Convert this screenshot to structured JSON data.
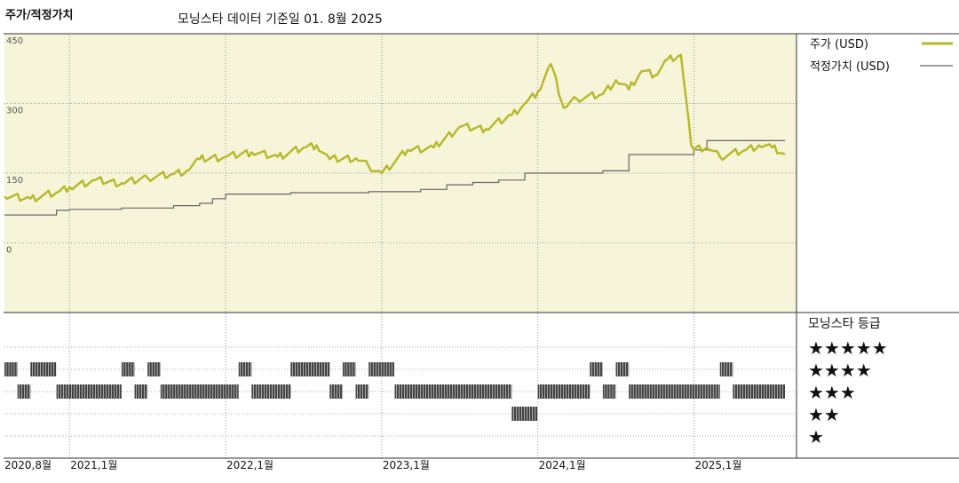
{
  "header": {
    "title": "주가/적정가치",
    "subtitle": "모닝스타 데이터 기준일 01. 8월 2025"
  },
  "legend": {
    "price_label": "주가 (USD)",
    "fair_label": "적정가치 (USD)",
    "price_color": "#b5b828",
    "fair_color": "#666666"
  },
  "rating_panel": {
    "title": "모닝스타 등급",
    "levels": [
      "★★★★★",
      "★★★★",
      "★★★",
      "★★",
      "★"
    ]
  },
  "chart_data": {
    "type": "line",
    "x_axis": {
      "start": "2020-08",
      "end": "2025-08",
      "ticks": [
        {
          "date": "2020-08",
          "label": "2020,8월"
        },
        {
          "date": "2021-01",
          "label": "2021,1월"
        },
        {
          "date": "2022-01",
          "label": "2022,1월"
        },
        {
          "date": "2023-01",
          "label": "2023,1월"
        },
        {
          "date": "2024-01",
          "label": "2024,1월"
        },
        {
          "date": "2025-01",
          "label": "2025,1월"
        }
      ]
    },
    "y_axis": {
      "range": [
        -150,
        450
      ],
      "ticks": [
        {
          "value": 450,
          "label": "450"
        },
        {
          "value": 300,
          "label": "300"
        },
        {
          "value": 150,
          "label": "150"
        },
        {
          "value": 0,
          "label": "0"
        }
      ],
      "grid": true
    },
    "legend_position": "right",
    "series": [
      {
        "name": "주가 (USD)",
        "points": [
          [
            "2020-08",
            100
          ],
          [
            "2020-10",
            95
          ],
          [
            "2020-12",
            108
          ],
          [
            "2021-01",
            120
          ],
          [
            "2021-03",
            135
          ],
          [
            "2021-05",
            128
          ],
          [
            "2021-07",
            140
          ],
          [
            "2021-09",
            148
          ],
          [
            "2021-10",
            155
          ],
          [
            "2021-11",
            180
          ],
          [
            "2022-01",
            185
          ],
          [
            "2022-03",
            195
          ],
          [
            "2022-05",
            185
          ],
          [
            "2022-07",
            205
          ],
          [
            "2022-08",
            210
          ],
          [
            "2022-09",
            180
          ],
          [
            "2022-11",
            182
          ],
          [
            "2022-12",
            165
          ],
          [
            "2023-01",
            150
          ],
          [
            "2023-03",
            200
          ],
          [
            "2023-05",
            205
          ],
          [
            "2023-07",
            250
          ],
          [
            "2023-09",
            245
          ],
          [
            "2023-11",
            275
          ],
          [
            "2023-12",
            300
          ],
          [
            "2024-01",
            325
          ],
          [
            "2024-02",
            385
          ],
          [
            "2024-03",
            290
          ],
          [
            "2024-04",
            310
          ],
          [
            "2024-06",
            320
          ],
          [
            "2024-07",
            350
          ],
          [
            "2024-08",
            330
          ],
          [
            "2024-09",
            370
          ],
          [
            "2024-10",
            360
          ],
          [
            "2024-11",
            395
          ],
          [
            "2024-12",
            405
          ],
          [
            "2024-12-25",
            210
          ],
          [
            "2025-01",
            200
          ],
          [
            "2025-02",
            205
          ],
          [
            "2025-03",
            185
          ],
          [
            "2025-05",
            200
          ],
          [
            "2025-06",
            210
          ],
          [
            "2025-07",
            205
          ],
          [
            "2025-08",
            190
          ]
        ]
      },
      {
        "name": "적정가치 (USD)",
        "points": [
          [
            "2020-08",
            60
          ],
          [
            "2020-12",
            60
          ],
          [
            "2020-12",
            70
          ],
          [
            "2021-01",
            72
          ],
          [
            "2021-05",
            75
          ],
          [
            "2021-09",
            80
          ],
          [
            "2021-11",
            85
          ],
          [
            "2021-12",
            95
          ],
          [
            "2022-01",
            105
          ],
          [
            "2022-06",
            108
          ],
          [
            "2022-12",
            110
          ],
          [
            "2023-04",
            115
          ],
          [
            "2023-06",
            125
          ],
          [
            "2023-08",
            130
          ],
          [
            "2023-10",
            135
          ],
          [
            "2023-12",
            150
          ],
          [
            "2024-06",
            155
          ],
          [
            "2024-08",
            190
          ],
          [
            "2025-01",
            200
          ],
          [
            "2025-02",
            220
          ],
          [
            "2025-08",
            220
          ]
        ]
      }
    ],
    "rating_history": [
      {
        "stars": 4,
        "from": "2020-08",
        "to": "2020-09"
      },
      {
        "stars": 3,
        "from": "2020-09",
        "to": "2020-10"
      },
      {
        "stars": 4,
        "from": "2020-10",
        "to": "2020-12"
      },
      {
        "stars": 3,
        "from": "2020-12",
        "to": "2021-05"
      },
      {
        "stars": 4,
        "from": "2021-05",
        "to": "2021-06"
      },
      {
        "stars": 3,
        "from": "2021-06",
        "to": "2021-07"
      },
      {
        "stars": 4,
        "from": "2021-07",
        "to": "2021-08"
      },
      {
        "stars": 3,
        "from": "2021-08",
        "to": "2022-02"
      },
      {
        "stars": 4,
        "from": "2022-02",
        "to": "2022-03"
      },
      {
        "stars": 3,
        "from": "2022-03",
        "to": "2022-06"
      },
      {
        "stars": 4,
        "from": "2022-06",
        "to": "2022-09"
      },
      {
        "stars": 3,
        "from": "2022-09",
        "to": "2022-10"
      },
      {
        "stars": 4,
        "from": "2022-10",
        "to": "2022-11"
      },
      {
        "stars": 3,
        "from": "2022-11",
        "to": "2022-12"
      },
      {
        "stars": 4,
        "from": "2022-12",
        "to": "2023-02"
      },
      {
        "stars": 3,
        "from": "2023-02",
        "to": "2023-11"
      },
      {
        "stars": 2,
        "from": "2023-11",
        "to": "2024-01"
      },
      {
        "stars": 3,
        "from": "2024-01",
        "to": "2024-05"
      },
      {
        "stars": 4,
        "from": "2024-05",
        "to": "2024-06"
      },
      {
        "stars": 3,
        "from": "2024-06",
        "to": "2024-07"
      },
      {
        "stars": 4,
        "from": "2024-07",
        "to": "2024-08"
      },
      {
        "stars": 3,
        "from": "2024-08",
        "to": "2025-03"
      },
      {
        "stars": 4,
        "from": "2025-03",
        "to": "2025-04"
      },
      {
        "stars": 3,
        "from": "2025-04",
        "to": "2025-08"
      }
    ]
  }
}
